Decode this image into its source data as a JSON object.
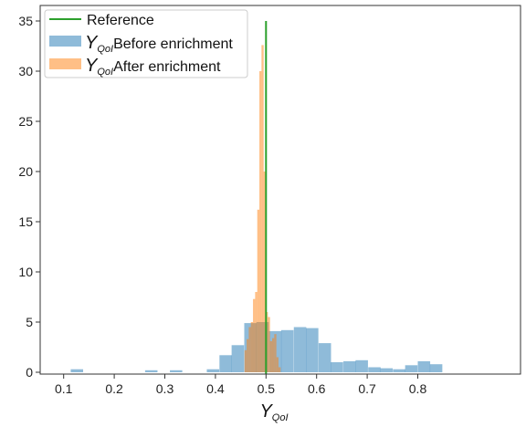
{
  "chart_data": {
    "type": "histogram",
    "xlabel": {
      "symbol": "Y",
      "subscript": "QoI"
    },
    "ylabel": "",
    "xlim": [
      0.08,
      0.86
    ],
    "ylim": [
      0,
      36
    ],
    "xticks": [
      "0.1",
      "0.2",
      "0.3",
      "0.4",
      "0.5",
      "0.6",
      "0.7",
      "0.8"
    ],
    "yticks": [
      "0",
      "5",
      "10",
      "15",
      "20",
      "25",
      "30",
      "35"
    ],
    "grid": false,
    "legend_position": "top-left",
    "reference_x": 0.5,
    "series": [
      {
        "kind": "line",
        "name": {
          "text": "Reference"
        },
        "color": "#2ca02c"
      },
      {
        "kind": "hist",
        "name": {
          "symbol": "Y",
          "subscript": "QoI",
          "text": "Before enrichment"
        },
        "color": "#1f77b4",
        "bin_width": 0.0245,
        "bins_start": [
          0.114,
          0.261,
          0.31,
          0.383,
          0.408,
          0.432,
          0.457,
          0.481,
          0.506,
          0.53,
          0.555,
          0.579,
          0.604,
          0.628,
          0.653,
          0.677,
          0.702,
          0.726,
          0.751,
          0.775,
          0.8,
          0.824
        ],
        "counts": [
          0.3,
          0.2,
          0.2,
          0.3,
          1.7,
          2.7,
          4.9,
          5.0,
          4.1,
          4.2,
          4.5,
          4.4,
          2.9,
          1.0,
          1.1,
          1.2,
          0.5,
          0.4,
          0.3,
          0.7,
          1.1,
          0.8
        ]
      },
      {
        "kind": "hist",
        "name": {
          "symbol": "Y",
          "subscript": "QoI",
          "text": "After enrichment"
        },
        "color": "#ff7f0e",
        "bin_width": 0.0042,
        "bins_start": [
          0.4575,
          0.4617,
          0.4659,
          0.4701,
          0.4743,
          0.4785,
          0.4827,
          0.4869,
          0.4911,
          0.4953,
          0.4995,
          0.5037,
          0.5079,
          0.5121,
          0.5163,
          0.5205,
          0.5247
        ],
        "counts": [
          2.2,
          3.3,
          4.5,
          5.0,
          7.3,
          8.0,
          16.2,
          30.0,
          32.6,
          20.0,
          6.0,
          5.5,
          3.1,
          3.4,
          3.8,
          1.5,
          0.5
        ]
      }
    ]
  }
}
